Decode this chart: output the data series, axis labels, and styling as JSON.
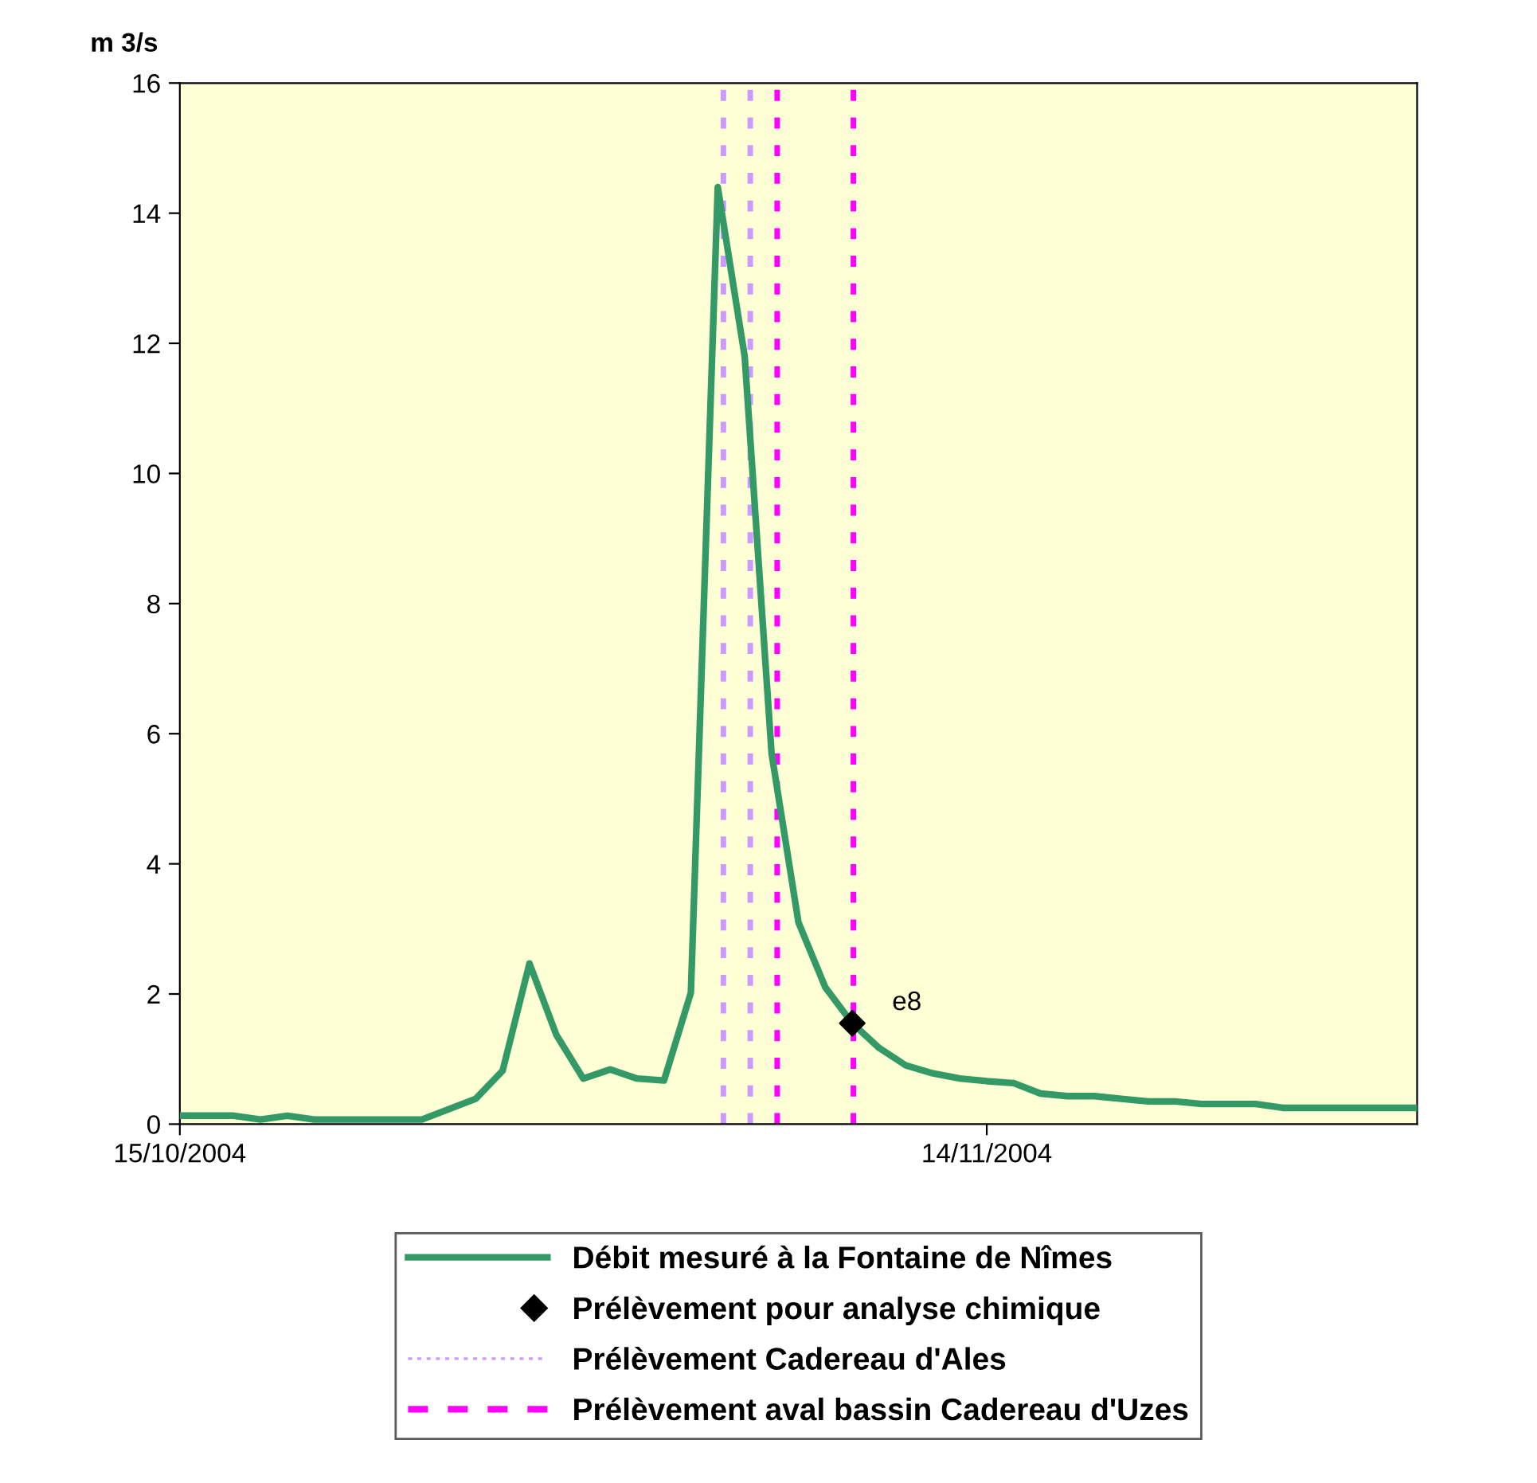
{
  "chart_data": {
    "type": "line",
    "ylabel": "m 3/s",
    "x": [
      "2004-10-15",
      "2004-10-16",
      "2004-10-17",
      "2004-10-18",
      "2004-10-19",
      "2004-10-20",
      "2004-10-21",
      "2004-10-22",
      "2004-10-23",
      "2004-10-24",
      "2004-10-25",
      "2004-10-26",
      "2004-10-27",
      "2004-10-28",
      "2004-10-29",
      "2004-10-30",
      "2004-10-31",
      "2004-11-01",
      "2004-11-02",
      "2004-11-03",
      "2004-11-04",
      "2004-11-05",
      "2004-11-06",
      "2004-11-07",
      "2004-11-08",
      "2004-11-09",
      "2004-11-10",
      "2004-11-11",
      "2004-11-12",
      "2004-11-13",
      "2004-11-14",
      "2004-11-15",
      "2004-11-16",
      "2004-11-17",
      "2004-11-18",
      "2004-11-19",
      "2004-11-20",
      "2004-11-21",
      "2004-11-22",
      "2004-11-23",
      "2004-11-24",
      "2004-11-25",
      "2004-11-26",
      "2004-11-27",
      "2004-11-28",
      "2004-11-29",
      "2004-11-30"
    ],
    "series": [
      {
        "name": "Débit mesuré à la Fontaine de Nîmes",
        "color": "#339966",
        "marker": "none",
        "line_style": "solid",
        "values": [
          0.13,
          0.13,
          0.13,
          0.07,
          0.13,
          0.07,
          0.07,
          0.07,
          0.07,
          0.07,
          0.23,
          0.39,
          0.82,
          2.47,
          1.37,
          0.7,
          0.84,
          0.7,
          0.67,
          2.02,
          14.4,
          11.8,
          5.7,
          3.1,
          2.1,
          1.55,
          1.17,
          0.9,
          0.78,
          0.7,
          0.66,
          0.63,
          0.47,
          0.43,
          0.43,
          0.39,
          0.35,
          0.35,
          0.31,
          0.31,
          0.31,
          0.25,
          0.25,
          0.25,
          0.25,
          0.25,
          0.25
        ]
      },
      {
        "name": "Prélèvement pour analyse chimique",
        "color": "#000000",
        "type": "scatter",
        "marker": "diamond",
        "x": [
          "2004-11-09"
        ],
        "values": [
          1.55
        ]
      }
    ],
    "ref_lines": [
      {
        "axis": "x",
        "value": "2004-11-04T05:00",
        "label": "Prélèvement Cadereau d'Ales",
        "color": "#cc99ff",
        "line_style": "dotted"
      },
      {
        "axis": "x",
        "value": "2004-11-05T05:00",
        "color": "#cc99ff",
        "line_style": "dotted"
      },
      {
        "axis": "x",
        "value": "2004-11-06T05:00",
        "label": "Prélèvement aval bassin Cadereau d'Uzes",
        "color": "#ff00ff",
        "line_style": "dashed"
      },
      {
        "axis": "x",
        "value": "2004-11-09T01:00",
        "color": "#ff00ff",
        "line_style": "dashed"
      }
    ],
    "annotations": [
      {
        "text": "e8",
        "x": "2004-11-09",
        "y": 1.55
      }
    ],
    "xlim": [
      "2004-10-15",
      "2004-11-30"
    ],
    "xticks": [
      {
        "value": "2004-10-15",
        "label": "15/10/2004"
      },
      {
        "value": "2004-11-14",
        "label": "14/11/2004"
      }
    ],
    "ylim": [
      0,
      16
    ],
    "yticks": [
      0,
      2,
      4,
      6,
      8,
      10,
      12,
      14,
      16
    ],
    "grid": false,
    "legend": "bottom"
  }
}
